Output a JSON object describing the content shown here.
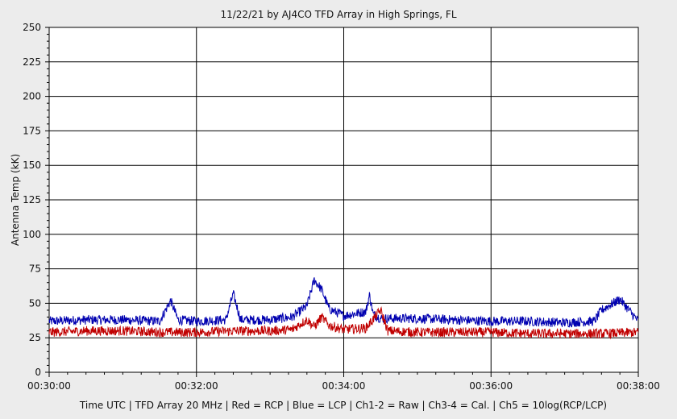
{
  "chart_data": {
    "type": "line",
    "title": "11/22/21  by  AJ4CO TFD Array  in  High Springs, FL",
    "ylabel": "Antenna Temp (kK)",
    "xlabel": "Time UTC | TFD Array 20 MHz | Red = RCP | Blue = LCP | Ch1-2 = Raw | Ch3-4 = Cal. | Ch5 = 10log(RCP/LCP)",
    "ylim": [
      0,
      250
    ],
    "xlim_minutes": [
      30,
      38
    ],
    "y_ticks": [
      "0",
      "25",
      "50",
      "75",
      "100",
      "125",
      "150",
      "175",
      "200",
      "225",
      "250"
    ],
    "x_ticks": [
      "00:30:00",
      "00:32:00",
      "00:34:00",
      "00:36:00",
      "00:38:00"
    ],
    "grid": true,
    "series": [
      {
        "name": "LCP",
        "color": "#0000b0",
        "x": [
          30.0,
          30.5,
          31.0,
          31.5,
          31.65,
          31.75,
          32.0,
          32.4,
          32.5,
          32.6,
          33.0,
          33.3,
          33.5,
          33.6,
          33.7,
          33.8,
          34.0,
          34.3,
          34.35,
          34.4,
          34.5,
          35.0,
          35.5,
          36.0,
          36.5,
          37.0,
          37.4,
          37.5,
          37.75,
          38.0
        ],
        "values": [
          37,
          38,
          38,
          37,
          52,
          38,
          37,
          38,
          57,
          38,
          38,
          40,
          48,
          67,
          60,
          46,
          41,
          44,
          56,
          42,
          39,
          39,
          38,
          37,
          37,
          36,
          37,
          45,
          53,
          37
        ]
      },
      {
        "name": "RCP",
        "color": "#c00000",
        "x": [
          30.0,
          30.5,
          31.0,
          31.5,
          32.0,
          32.5,
          33.0,
          33.3,
          33.5,
          33.6,
          33.7,
          33.8,
          34.0,
          34.3,
          34.5,
          34.6,
          35.0,
          35.5,
          36.0,
          36.5,
          37.0,
          37.5,
          38.0
        ],
        "values": [
          29,
          30,
          30,
          29,
          29,
          30,
          30,
          31,
          38,
          33,
          40,
          34,
          31,
          32,
          45,
          30,
          29,
          29,
          29,
          28,
          28,
          28,
          29
        ]
      }
    ]
  }
}
